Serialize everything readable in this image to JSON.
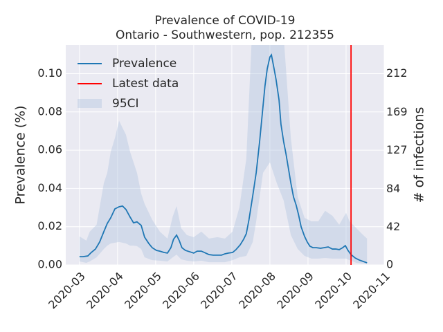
{
  "chart_data": {
    "type": "line",
    "title": "Prevalence of COVID-19",
    "subtitle": "Ontario - Southwestern, pop. 212355",
    "ylabel": "Prevalence (%)",
    "y2label": "# of infections",
    "x": [
      3.0,
      3.09,
      3.22,
      3.31,
      3.42,
      3.53,
      3.64,
      3.73,
      3.82,
      3.93,
      4.04,
      4.13,
      4.22,
      4.33,
      4.42,
      4.51,
      4.62,
      4.71,
      4.82,
      4.91,
      5.02,
      5.11,
      5.22,
      5.31,
      5.4,
      5.47,
      5.55,
      5.62,
      5.69,
      5.78,
      5.89,
      6.0,
      6.09,
      6.2,
      6.31,
      6.4,
      6.51,
      6.62,
      6.73,
      6.82,
      6.91,
      7.02,
      7.11,
      7.22,
      7.31,
      7.38,
      7.45,
      7.55,
      7.64,
      7.73,
      7.8,
      7.87,
      7.93,
      8.0,
      8.04,
      8.11,
      8.16,
      8.24,
      8.29,
      8.36,
      8.42,
      8.49,
      8.55,
      8.62,
      8.69,
      8.75,
      8.82,
      8.91,
      8.98,
      9.05,
      9.13,
      9.22,
      9.33,
      9.42,
      9.53,
      9.64,
      9.73,
      9.82,
      9.91,
      9.98,
      10.05,
      10.13,
      10.24,
      10.35,
      10.45,
      10.55
    ],
    "series": [
      {
        "name": "Prevalence",
        "color": "#1f77b4",
        "values": [
          0.0043,
          0.0043,
          0.0047,
          0.0065,
          0.0083,
          0.012,
          0.0174,
          0.0217,
          0.0246,
          0.0293,
          0.0304,
          0.0308,
          0.029,
          0.025,
          0.022,
          0.0225,
          0.0207,
          0.0145,
          0.0112,
          0.009,
          0.0076,
          0.0072,
          0.0065,
          0.0062,
          0.009,
          0.0134,
          0.0156,
          0.0127,
          0.009,
          0.0076,
          0.0069,
          0.0062,
          0.0072,
          0.0072,
          0.0062,
          0.0054,
          0.0051,
          0.0051,
          0.0051,
          0.0058,
          0.0062,
          0.0065,
          0.008,
          0.0105,
          0.0134,
          0.0163,
          0.0236,
          0.0362,
          0.0482,
          0.0645,
          0.079,
          0.0935,
          0.1025,
          0.1087,
          0.1098,
          0.1025,
          0.0971,
          0.0862,
          0.0736,
          0.0645,
          0.0583,
          0.05,
          0.0428,
          0.0355,
          0.0312,
          0.0264,
          0.0199,
          0.0149,
          0.012,
          0.0098,
          0.009,
          0.009,
          0.0087,
          0.009,
          0.0094,
          0.0083,
          0.0083,
          0.008,
          0.009,
          0.0101,
          0.0076,
          0.0054,
          0.0036,
          0.0025,
          0.0018,
          0.0011
        ]
      }
    ],
    "band": {
      "name": "95CI",
      "color": "#b0c4de",
      "x": [
        3.0,
        3.18,
        3.27,
        3.45,
        3.64,
        3.73,
        3.82,
        3.93,
        4.04,
        4.13,
        4.22,
        4.33,
        4.42,
        4.51,
        4.62,
        4.71,
        4.91,
        5.11,
        5.31,
        5.45,
        5.55,
        5.67,
        5.82,
        6.0,
        6.2,
        6.4,
        6.62,
        6.82,
        7.02,
        7.2,
        7.38,
        7.55,
        7.64,
        7.82,
        8.0,
        8.18,
        8.36,
        8.55,
        8.73,
        8.91,
        9.09,
        9.27,
        9.45,
        9.64,
        9.82,
        10.0,
        10.09,
        10.27,
        10.45,
        10.55
      ],
      "upper": [
        0.0149,
        0.0127,
        0.0174,
        0.021,
        0.0428,
        0.0482,
        0.0591,
        0.0663,
        0.0754,
        0.0717,
        0.0681,
        0.0591,
        0.0536,
        0.0482,
        0.0373,
        0.0319,
        0.0236,
        0.0174,
        0.0138,
        0.0254,
        0.0308,
        0.0192,
        0.0156,
        0.0145,
        0.0174,
        0.0138,
        0.0145,
        0.0138,
        0.0174,
        0.0301,
        0.0554,
        0.13,
        0.2,
        0.25,
        0.26,
        0.22,
        0.12,
        0.0663,
        0.0355,
        0.0246,
        0.0228,
        0.0228,
        0.0283,
        0.0257,
        0.021,
        0.0272,
        0.0228,
        0.0192,
        0.0156,
        0.0138
      ],
      "lower": [
        0.0018,
        0.0011,
        0.0018,
        0.004,
        0.0083,
        0.0101,
        0.0112,
        0.0116,
        0.012,
        0.0116,
        0.0112,
        0.0101,
        0.0101,
        0.0098,
        0.0083,
        0.004,
        0.0025,
        0.0022,
        0.0018,
        0.004,
        0.0054,
        0.0029,
        0.0022,
        0.0018,
        0.0022,
        0.0014,
        0.0014,
        0.0014,
        0.0025,
        0.004,
        0.0047,
        0.012,
        0.0228,
        0.0482,
        0.0536,
        0.0428,
        0.0337,
        0.0156,
        0.0083,
        0.0047,
        0.0033,
        0.0033,
        0.0036,
        0.0033,
        0.0033,
        0.0033,
        0.0025,
        0.0011,
        0.0007,
        0.0004
      ]
    },
    "vline": {
      "name": "Latest data",
      "color": "#ff0000",
      "x": 10.13
    },
    "xlim": [
      2.64,
      11
    ],
    "xticks": [
      {
        "value": 3,
        "label": "2020-03"
      },
      {
        "value": 4,
        "label": "2020-04"
      },
      {
        "value": 5,
        "label": "2020-05"
      },
      {
        "value": 6,
        "label": "2020-06"
      },
      {
        "value": 7,
        "label": "2020-07"
      },
      {
        "value": 8,
        "label": "2020-08"
      },
      {
        "value": 9,
        "label": "2020-09"
      },
      {
        "value": 10,
        "label": "2020-10"
      },
      {
        "value": 11,
        "label": "2020-11"
      }
    ],
    "ylim": [
      0,
      0.115
    ],
    "yticks": [
      {
        "value": 0,
        "label": "0.00"
      },
      0.02,
      0.04,
      0.06,
      0.08,
      {
        "value": 0.1,
        "label": "0.10"
      }
    ],
    "y2lim": [
      0,
      244
    ],
    "y2ticks": [
      0,
      42,
      84,
      127,
      169,
      212
    ],
    "grid": true,
    "legend": "upper left"
  }
}
